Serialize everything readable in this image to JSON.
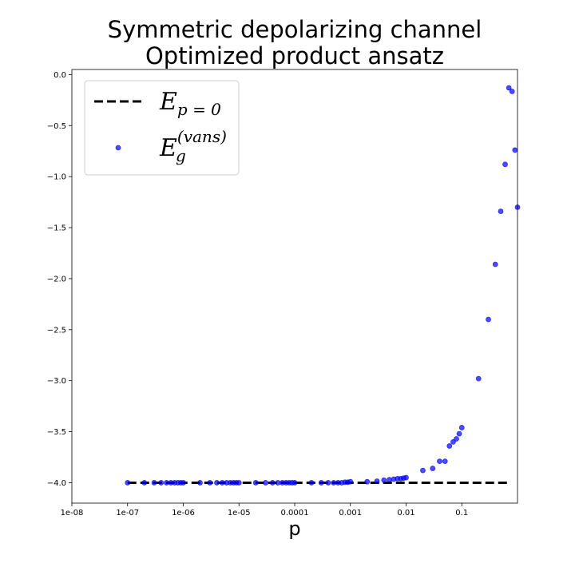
{
  "chart_data": {
    "type": "scatter",
    "title": [
      "Symmetric depolarizing channel",
      "Optimized product ansatz"
    ],
    "xlabel": "p",
    "ylabel": "",
    "xscale": "log",
    "xlim": [
      1e-08,
      1
    ],
    "ylim": [
      -4.2,
      0.05
    ],
    "x_ticks": [
      {
        "value": 1e-08,
        "label": "1e-08"
      },
      {
        "value": 1e-07,
        "label": "1e-07"
      },
      {
        "value": 1e-06,
        "label": "1e-06"
      },
      {
        "value": 1e-05,
        "label": "1e-05"
      },
      {
        "value": 0.0001,
        "label": "0.0001"
      },
      {
        "value": 0.001,
        "label": "0.001"
      },
      {
        "value": 0.01,
        "label": "0.01"
      },
      {
        "value": 0.1,
        "label": "0.1"
      }
    ],
    "y_ticks": [
      {
        "value": 0.0,
        "label": "0.0"
      },
      {
        "value": -0.5,
        "label": "−0.5"
      },
      {
        "value": -1.0,
        "label": "−1.0"
      },
      {
        "value": -1.5,
        "label": "−1.5"
      },
      {
        "value": -2.0,
        "label": "−2.0"
      },
      {
        "value": -2.5,
        "label": "−2.5"
      },
      {
        "value": -3.0,
        "label": "−3.0"
      },
      {
        "value": -3.5,
        "label": "−3.5"
      },
      {
        "value": -4.0,
        "label": "−4.0"
      }
    ],
    "grid": false,
    "legend_position": "top-left",
    "legend": [
      {
        "kind": "line",
        "base": "E",
        "sub": "p = 0",
        "sup": ""
      },
      {
        "kind": "marker",
        "base": "E",
        "sub": "g",
        "sup": "(vans)"
      }
    ],
    "series": [
      {
        "kind": "line",
        "style": "dashed",
        "color": "#000000",
        "x": [
          1e-07,
          0.75
        ],
        "y": [
          -4.0,
          -4.0
        ]
      },
      {
        "kind": "scatter",
        "color": "#0000ff",
        "x": [
          1e-07,
          2e-07,
          3e-07,
          4e-07,
          5e-07,
          6e-07,
          7e-07,
          8e-07,
          9e-07,
          1e-06,
          2e-06,
          3e-06,
          4e-06,
          5e-06,
          6e-06,
          7e-06,
          8e-06,
          9e-06,
          1e-05,
          2e-05,
          3e-05,
          4e-05,
          5e-05,
          6e-05,
          7e-05,
          8e-05,
          9e-05,
          0.0001,
          0.0002,
          0.0003,
          0.0004,
          0.0005,
          0.0006,
          0.0007,
          0.0008,
          0.0009,
          0.001,
          0.002,
          0.003,
          0.004,
          0.005,
          0.006,
          0.007,
          0.008,
          0.009,
          0.01,
          0.02,
          0.03,
          0.04,
          0.05,
          0.06,
          0.07,
          0.08,
          0.09,
          0.1,
          0.2,
          0.3,
          0.4,
          0.5,
          0.6,
          0.7,
          0.8,
          0.9,
          1.0
        ],
        "y": [
          -4.0,
          -4.0,
          -4.0,
          -4.0,
          -4.0,
          -4.0,
          -4.0,
          -4.0,
          -4.0,
          -4.0,
          -4.0,
          -4.0,
          -4.0,
          -4.0,
          -4.0,
          -4.0,
          -4.0,
          -4.0,
          -4.0,
          -4.0,
          -4.0,
          -4.0,
          -4.0,
          -4.0,
          -4.0,
          -4.0,
          -4.0,
          -4.0,
          -4.0,
          -4.0,
          -4.0,
          -4.0,
          -4.0,
          -4.0,
          -3.995,
          -3.995,
          -3.99,
          -3.99,
          -3.985,
          -3.975,
          -3.97,
          -3.965,
          -3.96,
          -3.96,
          -3.955,
          -3.95,
          -3.88,
          -3.86,
          -3.79,
          -3.79,
          -3.64,
          -3.6,
          -3.57,
          -3.52,
          -3.46,
          -2.98,
          -2.4,
          -1.86,
          -1.34,
          -0.88,
          -0.13,
          -0.165,
          -0.74,
          -1.3
        ]
      }
    ]
  }
}
